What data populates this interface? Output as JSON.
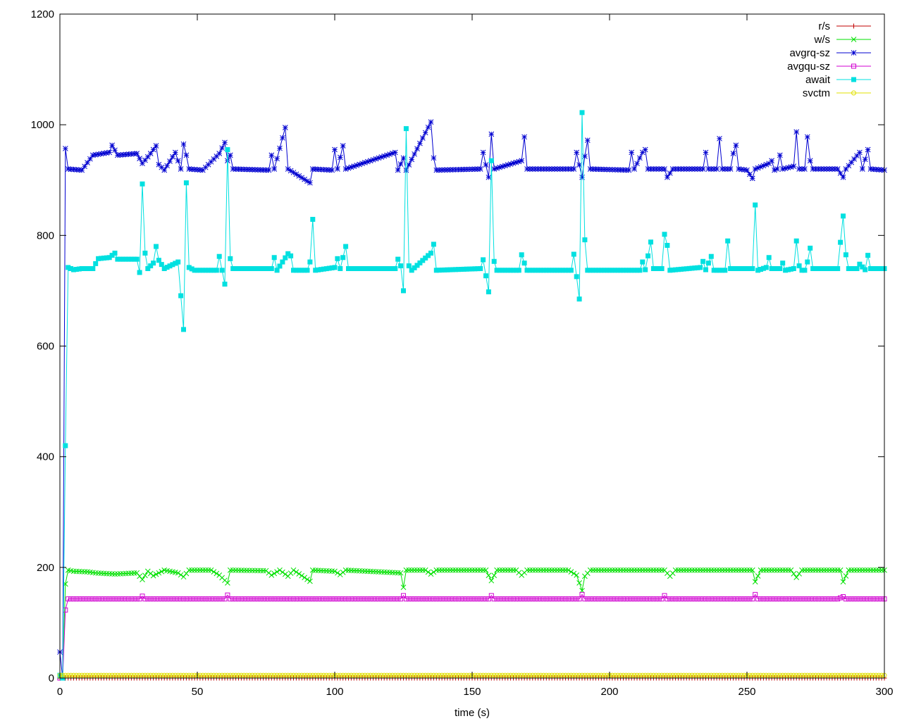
{
  "chart_data": {
    "type": "line",
    "xlabel": "time (s)",
    "ylabel": "",
    "xlim": [
      0,
      300
    ],
    "ylim": [
      0,
      1200
    ],
    "xticks": [
      0,
      50,
      100,
      150,
      200,
      250,
      300
    ],
    "yticks": [
      0,
      200,
      400,
      600,
      800,
      1000,
      1200
    ],
    "grid": false,
    "legend_position": "top-right",
    "series": [
      {
        "name": "r/s",
        "color": "#c00000",
        "marker": "plus",
        "points": [
          [
            0,
            0
          ],
          [
            300,
            0
          ]
        ]
      },
      {
        "name": "w/s",
        "color": "#00e000",
        "marker": "cross",
        "points": [
          [
            0,
            2
          ],
          [
            1,
            0
          ],
          [
            2,
            170
          ],
          [
            3,
            195
          ],
          [
            5,
            193
          ],
          [
            10,
            192
          ],
          [
            13,
            190
          ],
          [
            20,
            188
          ],
          [
            28,
            190
          ],
          [
            30,
            178
          ],
          [
            32,
            193
          ],
          [
            34,
            185
          ],
          [
            38,
            195
          ],
          [
            43,
            190
          ],
          [
            45,
            183
          ],
          [
            47,
            195
          ],
          [
            55,
            195
          ],
          [
            58,
            186
          ],
          [
            61,
            172
          ],
          [
            62,
            195
          ],
          [
            75,
            194
          ],
          [
            77,
            186
          ],
          [
            80,
            195
          ],
          [
            83,
            184
          ],
          [
            85,
            195
          ],
          [
            91,
            175
          ],
          [
            92,
            195
          ],
          [
            100,
            193
          ],
          [
            102,
            187
          ],
          [
            104,
            195
          ],
          [
            124,
            190
          ],
          [
            125,
            164
          ],
          [
            126,
            195
          ],
          [
            133,
            195
          ],
          [
            135,
            188
          ],
          [
            137,
            195
          ],
          [
            155,
            195
          ],
          [
            157,
            176
          ],
          [
            159,
            195
          ],
          [
            166,
            195
          ],
          [
            168,
            186
          ],
          [
            170,
            195
          ],
          [
            185,
            195
          ],
          [
            188,
            186
          ],
          [
            190,
            158
          ],
          [
            191,
            184
          ],
          [
            193,
            195
          ],
          [
            220,
            195
          ],
          [
            222,
            184
          ],
          [
            224,
            195
          ],
          [
            252,
            195
          ],
          [
            253,
            174
          ],
          [
            255,
            195
          ],
          [
            266,
            195
          ],
          [
            268,
            182
          ],
          [
            270,
            195
          ],
          [
            284,
            195
          ],
          [
            285,
            174
          ],
          [
            287,
            195
          ],
          [
            300,
            195
          ]
        ]
      },
      {
        "name": "avgrq-sz",
        "color": "#0000d0",
        "marker": "star",
        "points": [
          [
            0,
            47
          ],
          [
            1,
            0
          ],
          [
            2,
            957
          ],
          [
            3,
            920
          ],
          [
            8,
            918
          ],
          [
            12,
            945
          ],
          [
            18,
            950
          ],
          [
            19,
            963
          ],
          [
            21,
            945
          ],
          [
            28,
            948
          ],
          [
            30,
            930
          ],
          [
            33,
            948
          ],
          [
            35,
            962
          ],
          [
            36,
            928
          ],
          [
            38,
            918
          ],
          [
            42,
            950
          ],
          [
            44,
            920
          ],
          [
            45,
            965
          ],
          [
            46,
            945
          ],
          [
            47,
            920
          ],
          [
            52,
            918
          ],
          [
            58,
            948
          ],
          [
            60,
            968
          ],
          [
            61,
            935
          ],
          [
            62,
            945
          ],
          [
            63,
            920
          ],
          [
            76,
            918
          ],
          [
            77,
            945
          ],
          [
            78,
            920
          ],
          [
            82,
            995
          ],
          [
            83,
            920
          ],
          [
            91,
            895
          ],
          [
            92,
            920
          ],
          [
            99,
            918
          ],
          [
            100,
            955
          ],
          [
            101,
            920
          ],
          [
            103,
            962
          ],
          [
            104,
            920
          ],
          [
            122,
            950
          ],
          [
            123,
            918
          ],
          [
            125,
            940
          ],
          [
            126,
            918
          ],
          [
            135,
            1005
          ],
          [
            136,
            940
          ],
          [
            137,
            918
          ],
          [
            153,
            920
          ],
          [
            154,
            950
          ],
          [
            156,
            905
          ],
          [
            157,
            983
          ],
          [
            158,
            920
          ],
          [
            168,
            935
          ],
          [
            169,
            978
          ],
          [
            170,
            920
          ],
          [
            187,
            920
          ],
          [
            188,
            950
          ],
          [
            190,
            905
          ],
          [
            191,
            943
          ],
          [
            192,
            972
          ],
          [
            193,
            920
          ],
          [
            207,
            918
          ],
          [
            208,
            950
          ],
          [
            209,
            920
          ],
          [
            212,
            950
          ],
          [
            213,
            955
          ],
          [
            214,
            920
          ],
          [
            220,
            920
          ],
          [
            221,
            905
          ],
          [
            223,
            920
          ],
          [
            234,
            920
          ],
          [
            235,
            950
          ],
          [
            236,
            920
          ],
          [
            239,
            920
          ],
          [
            240,
            975
          ],
          [
            241,
            920
          ],
          [
            244,
            920
          ],
          [
            245,
            948
          ],
          [
            246,
            963
          ],
          [
            247,
            920
          ],
          [
            250,
            918
          ],
          [
            252,
            903
          ],
          [
            253,
            920
          ],
          [
            258,
            930
          ],
          [
            259,
            935
          ],
          [
            260,
            918
          ],
          [
            261,
            920
          ],
          [
            262,
            945
          ],
          [
            263,
            920
          ],
          [
            267,
            925
          ],
          [
            268,
            987
          ],
          [
            269,
            920
          ],
          [
            271,
            920
          ],
          [
            272,
            978
          ],
          [
            273,
            935
          ],
          [
            274,
            920
          ],
          [
            283,
            920
          ],
          [
            285,
            905
          ],
          [
            286,
            920
          ],
          [
            291,
            950
          ],
          [
            292,
            920
          ],
          [
            294,
            955
          ],
          [
            295,
            920
          ],
          [
            300,
            918
          ]
        ]
      },
      {
        "name": "avgqu-sz",
        "color": "#d000d0",
        "marker": "square",
        "points": [
          [
            0,
            0
          ],
          [
            1,
            0
          ],
          [
            2,
            123
          ],
          [
            3,
            143
          ],
          [
            29,
            143
          ],
          [
            30,
            148
          ],
          [
            31,
            143
          ],
          [
            60,
            143
          ],
          [
            61,
            150
          ],
          [
            62,
            143
          ],
          [
            124,
            143
          ],
          [
            125,
            149
          ],
          [
            126,
            143
          ],
          [
            156,
            143
          ],
          [
            157,
            149
          ],
          [
            158,
            143
          ],
          [
            189,
            143
          ],
          [
            190,
            151
          ],
          [
            191,
            143
          ],
          [
            219,
            143
          ],
          [
            220,
            149
          ],
          [
            221,
            143
          ],
          [
            252,
            143
          ],
          [
            253,
            151
          ],
          [
            254,
            143
          ],
          [
            283,
            143
          ],
          [
            285,
            147
          ],
          [
            286,
            143
          ],
          [
            300,
            143
          ]
        ]
      },
      {
        "name": "await",
        "color": "#00e0e0",
        "marker": "filled-square",
        "points": [
          [
            0,
            5
          ],
          [
            1,
            0
          ],
          [
            2,
            420
          ],
          [
            3,
            742
          ],
          [
            5,
            738
          ],
          [
            8,
            740
          ],
          [
            12,
            740
          ],
          [
            14,
            758
          ],
          [
            18,
            760
          ],
          [
            20,
            768
          ],
          [
            21,
            757
          ],
          [
            28,
            757
          ],
          [
            29,
            733
          ],
          [
            30,
            893
          ],
          [
            31,
            768
          ],
          [
            32,
            740
          ],
          [
            34,
            750
          ],
          [
            35,
            780
          ],
          [
            36,
            755
          ],
          [
            38,
            740
          ],
          [
            43,
            752
          ],
          [
            45,
            630
          ],
          [
            46,
            895
          ],
          [
            47,
            742
          ],
          [
            49,
            737
          ],
          [
            57,
            737
          ],
          [
            58,
            762
          ],
          [
            60,
            712
          ],
          [
            61,
            955
          ],
          [
            62,
            758
          ],
          [
            63,
            740
          ],
          [
            77,
            740
          ],
          [
            78,
            760
          ],
          [
            79,
            737
          ],
          [
            83,
            767
          ],
          [
            84,
            763
          ],
          [
            85,
            737
          ],
          [
            90,
            737
          ],
          [
            91,
            752
          ],
          [
            92,
            829
          ],
          [
            93,
            737
          ],
          [
            100,
            742
          ],
          [
            101,
            758
          ],
          [
            102,
            740
          ],
          [
            104,
            780
          ],
          [
            105,
            740
          ],
          [
            122,
            740
          ],
          [
            123,
            757
          ],
          [
            124,
            745
          ],
          [
            125,
            700
          ],
          [
            126,
            993
          ],
          [
            127,
            745
          ],
          [
            128,
            737
          ],
          [
            135,
            768
          ],
          [
            136,
            784
          ],
          [
            137,
            737
          ],
          [
            153,
            740
          ],
          [
            154,
            756
          ],
          [
            156,
            698
          ],
          [
            157,
            935
          ],
          [
            158,
            753
          ],
          [
            159,
            737
          ],
          [
            167,
            737
          ],
          [
            168,
            765
          ],
          [
            169,
            750
          ],
          [
            170,
            737
          ],
          [
            186,
            737
          ],
          [
            187,
            766
          ],
          [
            189,
            685
          ],
          [
            190,
            1022
          ],
          [
            191,
            792
          ],
          [
            192,
            737
          ],
          [
            211,
            737
          ],
          [
            212,
            752
          ],
          [
            213,
            738
          ],
          [
            215,
            788
          ],
          [
            216,
            740
          ],
          [
            219,
            740
          ],
          [
            220,
            802
          ],
          [
            221,
            782
          ],
          [
            222,
            737
          ],
          [
            233,
            742
          ],
          [
            234,
            753
          ],
          [
            235,
            738
          ],
          [
            237,
            762
          ],
          [
            238,
            737
          ],
          [
            242,
            737
          ],
          [
            243,
            790
          ],
          [
            244,
            740
          ],
          [
            252,
            740
          ],
          [
            253,
            855
          ],
          [
            254,
            737
          ],
          [
            257,
            742
          ],
          [
            258,
            760
          ],
          [
            259,
            740
          ],
          [
            262,
            740
          ],
          [
            263,
            750
          ],
          [
            264,
            737
          ],
          [
            267,
            740
          ],
          [
            268,
            790
          ],
          [
            269,
            745
          ],
          [
            270,
            737
          ],
          [
            271,
            737
          ],
          [
            272,
            752
          ],
          [
            273,
            777
          ],
          [
            274,
            740
          ],
          [
            283,
            740
          ],
          [
            285,
            835
          ],
          [
            286,
            765
          ],
          [
            287,
            740
          ],
          [
            290,
            740
          ],
          [
            291,
            748
          ],
          [
            293,
            738
          ],
          [
            294,
            764
          ],
          [
            295,
            740
          ],
          [
            300,
            740
          ]
        ]
      },
      {
        "name": "svctm",
        "color": "#e0e000",
        "marker": "circle",
        "points": [
          [
            0,
            5
          ],
          [
            300,
            5
          ]
        ]
      }
    ]
  }
}
